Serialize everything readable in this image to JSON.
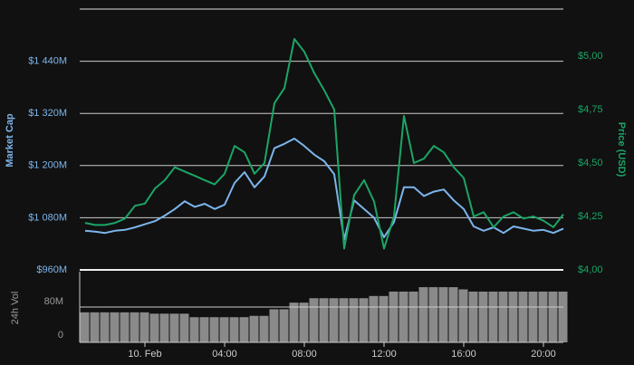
{
  "chart_data": {
    "type": "line",
    "categories": [
      null,
      null,
      null,
      null,
      null,
      null,
      "10. Feb",
      null,
      null,
      null,
      null,
      null,
      null,
      null,
      "04:00",
      null,
      null,
      null,
      null,
      null,
      null,
      null,
      "08:00",
      null,
      null,
      null,
      null,
      null,
      null,
      null,
      "12:00",
      null,
      null,
      null,
      null,
      null,
      null,
      null,
      "16:00",
      null,
      null,
      null,
      null,
      null,
      null,
      null,
      "20:00",
      null,
      null
    ],
    "series": [
      {
        "name": "Market Cap",
        "color": "#7cb5ec",
        "axis": "y",
        "values": [
          1050,
          1048,
          1045,
          1050,
          1052,
          1058,
          1065,
          1072,
          1085,
          1100,
          1118,
          1105,
          1112,
          1100,
          1110,
          1160,
          1185,
          1150,
          1175,
          1240,
          1250,
          1262,
          1245,
          1225,
          1210,
          1180,
          1030,
          1120,
          1100,
          1080,
          1035,
          1070,
          1150,
          1150,
          1130,
          1140,
          1145,
          1120,
          1100,
          1060,
          1050,
          1058,
          1045,
          1060,
          1055,
          1050,
          1052,
          1045,
          1055
        ]
      },
      {
        "name": "Price (USD)",
        "color": "#1ba566",
        "axis": "y2",
        "values": [
          4.22,
          4.21,
          4.21,
          4.22,
          4.24,
          4.3,
          4.31,
          4.38,
          4.42,
          4.48,
          4.46,
          4.44,
          4.42,
          4.4,
          4.45,
          4.58,
          4.55,
          4.45,
          4.5,
          4.78,
          4.85,
          5.08,
          5.02,
          4.92,
          4.84,
          4.75,
          4.1,
          4.35,
          4.42,
          4.32,
          4.1,
          4.25,
          4.72,
          4.5,
          4.52,
          4.58,
          4.55,
          4.48,
          4.43,
          4.25,
          4.27,
          4.2,
          4.25,
          4.27,
          4.24,
          4.25,
          4.23,
          4.2,
          4.26
        ]
      },
      {
        "name": "24h Vol",
        "color": "#a0a0a0",
        "axis": "y3",
        "type": "bar",
        "values": [
          68,
          68,
          68,
          68,
          68,
          68,
          68,
          65,
          65,
          65,
          65,
          57,
          57,
          57,
          57,
          57,
          57,
          60,
          60,
          75,
          75,
          90,
          90,
          100,
          100,
          100,
          100,
          100,
          100,
          105,
          105,
          115,
          115,
          115,
          125,
          125,
          125,
          125,
          120,
          115,
          115,
          115,
          115,
          115,
          115,
          115,
          115,
          115,
          115
        ]
      }
    ],
    "ylim": [
      960,
      1560
    ],
    "yticks": [
      {
        "value": 960,
        "label": "$960M"
      },
      {
        "value": 1080,
        "label": "$1 080M"
      },
      {
        "value": 1200,
        "label": "$1 200M"
      },
      {
        "value": 1320,
        "label": "$1 320M"
      },
      {
        "value": 1440,
        "label": "$1 440M"
      }
    ],
    "y2lim": [
      4,
      5.22
    ],
    "y2ticks": [
      {
        "value": 4,
        "label": "$4,00"
      },
      {
        "value": 4.25,
        "label": "$4,25"
      },
      {
        "value": 4.5,
        "label": "$4,50"
      },
      {
        "value": 4.75,
        "label": "$4,75"
      },
      {
        "value": 5,
        "label": "$5,00"
      }
    ],
    "y3lim": [
      0,
      160
    ],
    "y3ticks": [
      0,
      {
        "value": 80,
        "label": "80M"
      }
    ],
    "grid": true
  }
}
